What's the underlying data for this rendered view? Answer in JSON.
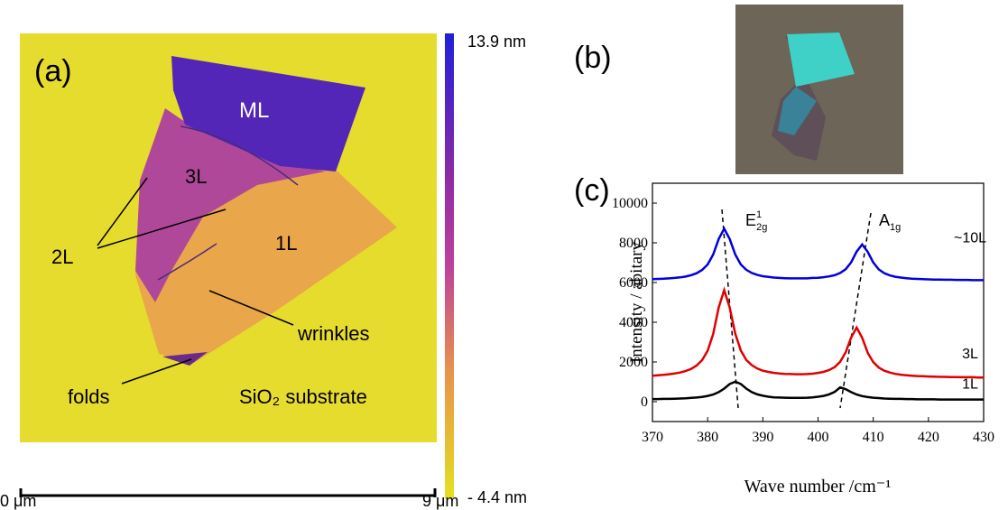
{
  "panel_a": {
    "label": "(a)",
    "regions": [
      "ML",
      "3L",
      "2L",
      "1L"
    ],
    "annotations": [
      "wrinkles",
      "folds",
      "SiO₂ substrate"
    ],
    "colorbar": {
      "max": "13.9 nm",
      "min": "- 4.4 nm"
    },
    "scale_bar": {
      "start": "0 μm",
      "end": "9 μm"
    }
  },
  "panel_b": {
    "label": "(b)"
  },
  "chart_data": {
    "type": "line",
    "panel_label": "(c)",
    "x_label": "Wave number /cm⁻¹",
    "y_label": "Intensity / abitary",
    "peak_labels": [
      {
        "text": "E",
        "sup": "1",
        "sub": "2g"
      },
      {
        "text": "A",
        "sub": "1g"
      }
    ],
    "x": [
      370,
      371,
      372,
      373,
      374,
      375,
      376,
      377,
      378,
      379,
      380,
      381,
      382,
      383,
      384,
      385,
      386,
      387,
      388,
      389,
      390,
      391,
      392,
      393,
      394,
      395,
      396,
      397,
      398,
      399,
      400,
      401,
      402,
      403,
      404,
      405,
      406,
      407,
      408,
      409,
      410,
      411,
      412,
      413,
      414,
      415,
      416,
      417,
      418,
      419,
      420,
      421,
      422,
      423,
      424,
      425,
      426,
      427,
      428,
      429,
      430
    ],
    "xlim": [
      370,
      430
    ],
    "xticks": [
      370,
      380,
      390,
      400,
      410,
      420,
      430
    ],
    "ylim": [
      -1000,
      11000
    ],
    "yticks": [
      0,
      2000,
      4000,
      6000,
      8000,
      10000
    ],
    "series": [
      {
        "name": "~10L",
        "color": "#0000e0",
        "values": [
          6170,
          6180,
          6190,
          6210,
          6230,
          6260,
          6300,
          6370,
          6470,
          6630,
          6910,
          7410,
          8190,
          8710,
          8190,
          7410,
          6910,
          6640,
          6480,
          6380,
          6320,
          6280,
          6250,
          6230,
          6220,
          6210,
          6210,
          6210,
          6210,
          6230,
          6240,
          6270,
          6310,
          6370,
          6480,
          6670,
          7020,
          7560,
          7920,
          7550,
          7010,
          6660,
          6470,
          6360,
          6290,
          6250,
          6220,
          6190,
          6180,
          6170,
          6160,
          6150,
          6150,
          6140,
          6140,
          6130,
          6130,
          6130,
          6120,
          6120,
          6120
        ]
      },
      {
        "name": "3L",
        "color": "#e00000",
        "values": [
          1310,
          1330,
          1350,
          1380,
          1420,
          1470,
          1540,
          1650,
          1820,
          2090,
          2570,
          3410,
          4740,
          5620,
          4740,
          3420,
          2580,
          2100,
          1840,
          1670,
          1560,
          1500,
          1450,
          1420,
          1400,
          1390,
          1380,
          1380,
          1390,
          1410,
          1450,
          1500,
          1590,
          1740,
          2010,
          2480,
          3230,
          3730,
          3220,
          2470,
          1990,
          1720,
          1560,
          1470,
          1400,
          1360,
          1330,
          1310,
          1290,
          1280,
          1270,
          1260,
          1250,
          1250,
          1240,
          1240,
          1230,
          1230,
          1230,
          1220,
          1220
        ]
      },
      {
        "name": "1L",
        "color": "#000000",
        "values": [
          130,
          130,
          140,
          140,
          150,
          160,
          170,
          190,
          210,
          240,
          290,
          360,
          480,
          660,
          890,
          1010,
          890,
          660,
          480,
          370,
          300,
          250,
          220,
          210,
          200,
          190,
          190,
          190,
          200,
          220,
          250,
          290,
          370,
          490,
          720,
          630,
          480,
          360,
          280,
          230,
          200,
          180,
          160,
          150,
          140,
          140,
          130,
          130,
          120,
          120,
          120,
          120,
          110,
          110,
          110,
          110,
          110,
          110,
          110,
          110,
          110
        ]
      }
    ]
  }
}
